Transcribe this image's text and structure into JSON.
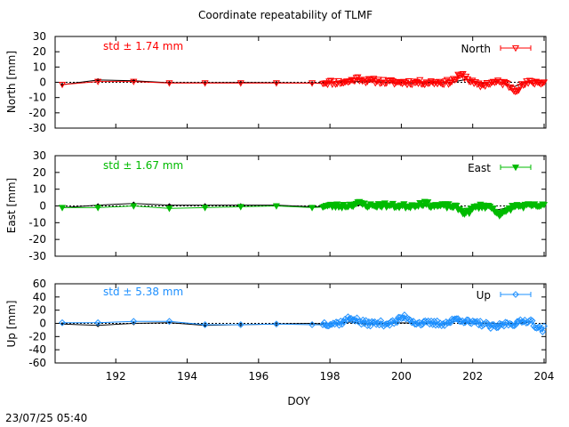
{
  "chart_data": {
    "type": "line",
    "title": "Coordinate repeatability of TLMF",
    "xlabel": "DOY",
    "xlim": [
      190.3,
      204.05
    ],
    "xticks": [
      192,
      194,
      196,
      198,
      200,
      202,
      204
    ],
    "xtick_labels": [
      "192",
      "194",
      "196",
      "198",
      "200",
      "202",
      "204"
    ],
    "timestamp": "23/07/25 05:40",
    "panels": [
      {
        "id": "north",
        "ylabel": "North [mm]",
        "ylim": [
          -30,
          30
        ],
        "yticks": [
          30,
          20,
          10,
          0,
          -10,
          -20,
          -30
        ],
        "ytick_labels": [
          "30",
          "20",
          "10",
          "0",
          "-10",
          "-20",
          "-30"
        ],
        "std_label": "std ± 1.74 mm",
        "legend": "North",
        "color": "#ff0000",
        "marker": "triangle-down-open",
        "daily_points": [
          [
            190.5,
            -1.5
          ],
          [
            191.5,
            0.5
          ],
          [
            192.5,
            0.5
          ],
          [
            193.5,
            -0.5
          ],
          [
            194.5,
            -0.5
          ],
          [
            195.5,
            -0.5
          ],
          [
            196.5,
            -0.5
          ],
          [
            197.5,
            -0.5
          ]
        ],
        "black_points": [
          [
            190.5,
            -1.5
          ],
          [
            191.5,
            1.5
          ],
          [
            192.5,
            1
          ],
          [
            193.5,
            -0.3
          ],
          [
            194.5,
            -0.3
          ],
          [
            195.5,
            -0.2
          ],
          [
            196.5,
            -0.3
          ],
          [
            197.5,
            -0.5
          ]
        ],
        "hourly": {
          "x_start": 197.8,
          "x_end": 204.0,
          "n": 140,
          "bumps": [
            [
              198.8,
              2.5
            ],
            [
              201.7,
              4.5
            ],
            [
              203.2,
              -4.5
            ],
            [
              199.3,
              1
            ],
            [
              202.2,
              -2
            ]
          ],
          "noise": 1.6,
          "seed": 11
        }
      },
      {
        "id": "east",
        "ylabel": "East [mm]",
        "ylim": [
          -30,
          30
        ],
        "yticks": [
          30,
          20,
          10,
          0,
          -10,
          -20,
          -30
        ],
        "ytick_labels": [
          "30",
          "20",
          "10",
          "0",
          "-10",
          "-20",
          "-30"
        ],
        "std_label": "std ± 1.67 mm",
        "legend": "East",
        "color": "#00bb00",
        "marker": "triangle-down-filled",
        "daily_points": [
          [
            190.5,
            -1
          ],
          [
            191.5,
            -1
          ],
          [
            192.5,
            0
          ],
          [
            193.5,
            -1.5
          ],
          [
            194.5,
            -1
          ],
          [
            195.5,
            -0.5
          ],
          [
            196.5,
            0
          ],
          [
            197.5,
            -1
          ]
        ],
        "black_points": [
          [
            190.5,
            -1
          ],
          [
            191.5,
            0.5
          ],
          [
            192.5,
            1.5
          ],
          [
            193.5,
            0.5
          ],
          [
            194.5,
            0.5
          ],
          [
            195.5,
            0.5
          ],
          [
            196.5,
            0.5
          ],
          [
            197.5,
            -0.5
          ]
        ],
        "hourly": {
          "x_start": 197.8,
          "x_end": 204.0,
          "n": 140,
          "bumps": [
            [
              198.8,
              1.5
            ],
            [
              200.6,
              1.5
            ],
            [
              201.8,
              -4
            ],
            [
              202.8,
              -5
            ],
            [
              199.5,
              0.5
            ]
          ],
          "noise": 1.3,
          "seed": 23
        }
      },
      {
        "id": "up",
        "ylabel": "Up [mm]",
        "ylim": [
          -60,
          60
        ],
        "yticks": [
          60,
          40,
          20,
          0,
          -20,
          -40,
          -60
        ],
        "ytick_labels": [
          "60",
          "40",
          "20",
          "0",
          "-20",
          "-40",
          "-60"
        ],
        "std_label": "std ± 5.38 mm",
        "legend": "Up",
        "color": "#1e90ff",
        "marker": "diamond-open",
        "daily_points": [
          [
            190.5,
            1
          ],
          [
            191.5,
            1
          ],
          [
            192.5,
            3
          ],
          [
            193.5,
            3
          ],
          [
            194.5,
            -2
          ],
          [
            195.5,
            -2
          ],
          [
            196.5,
            -1
          ],
          [
            197.5,
            -2
          ]
        ],
        "black_points": [
          [
            190.5,
            -1
          ],
          [
            191.5,
            -3
          ],
          [
            192.5,
            0
          ],
          [
            193.5,
            1
          ],
          [
            194.5,
            -3
          ],
          [
            195.5,
            -2
          ],
          [
            196.5,
            -1
          ],
          [
            197.5,
            0
          ]
        ],
        "hourly": {
          "x_start": 197.8,
          "x_end": 204.0,
          "n": 150,
          "bumps": [
            [
              198.6,
              8
            ],
            [
              200.1,
              10
            ],
            [
              201.6,
              7
            ],
            [
              202.6,
              -6
            ],
            [
              203.6,
              6
            ],
            [
              203.9,
              -10
            ]
          ],
          "noise": 4.2,
          "seed": 37
        }
      }
    ]
  }
}
